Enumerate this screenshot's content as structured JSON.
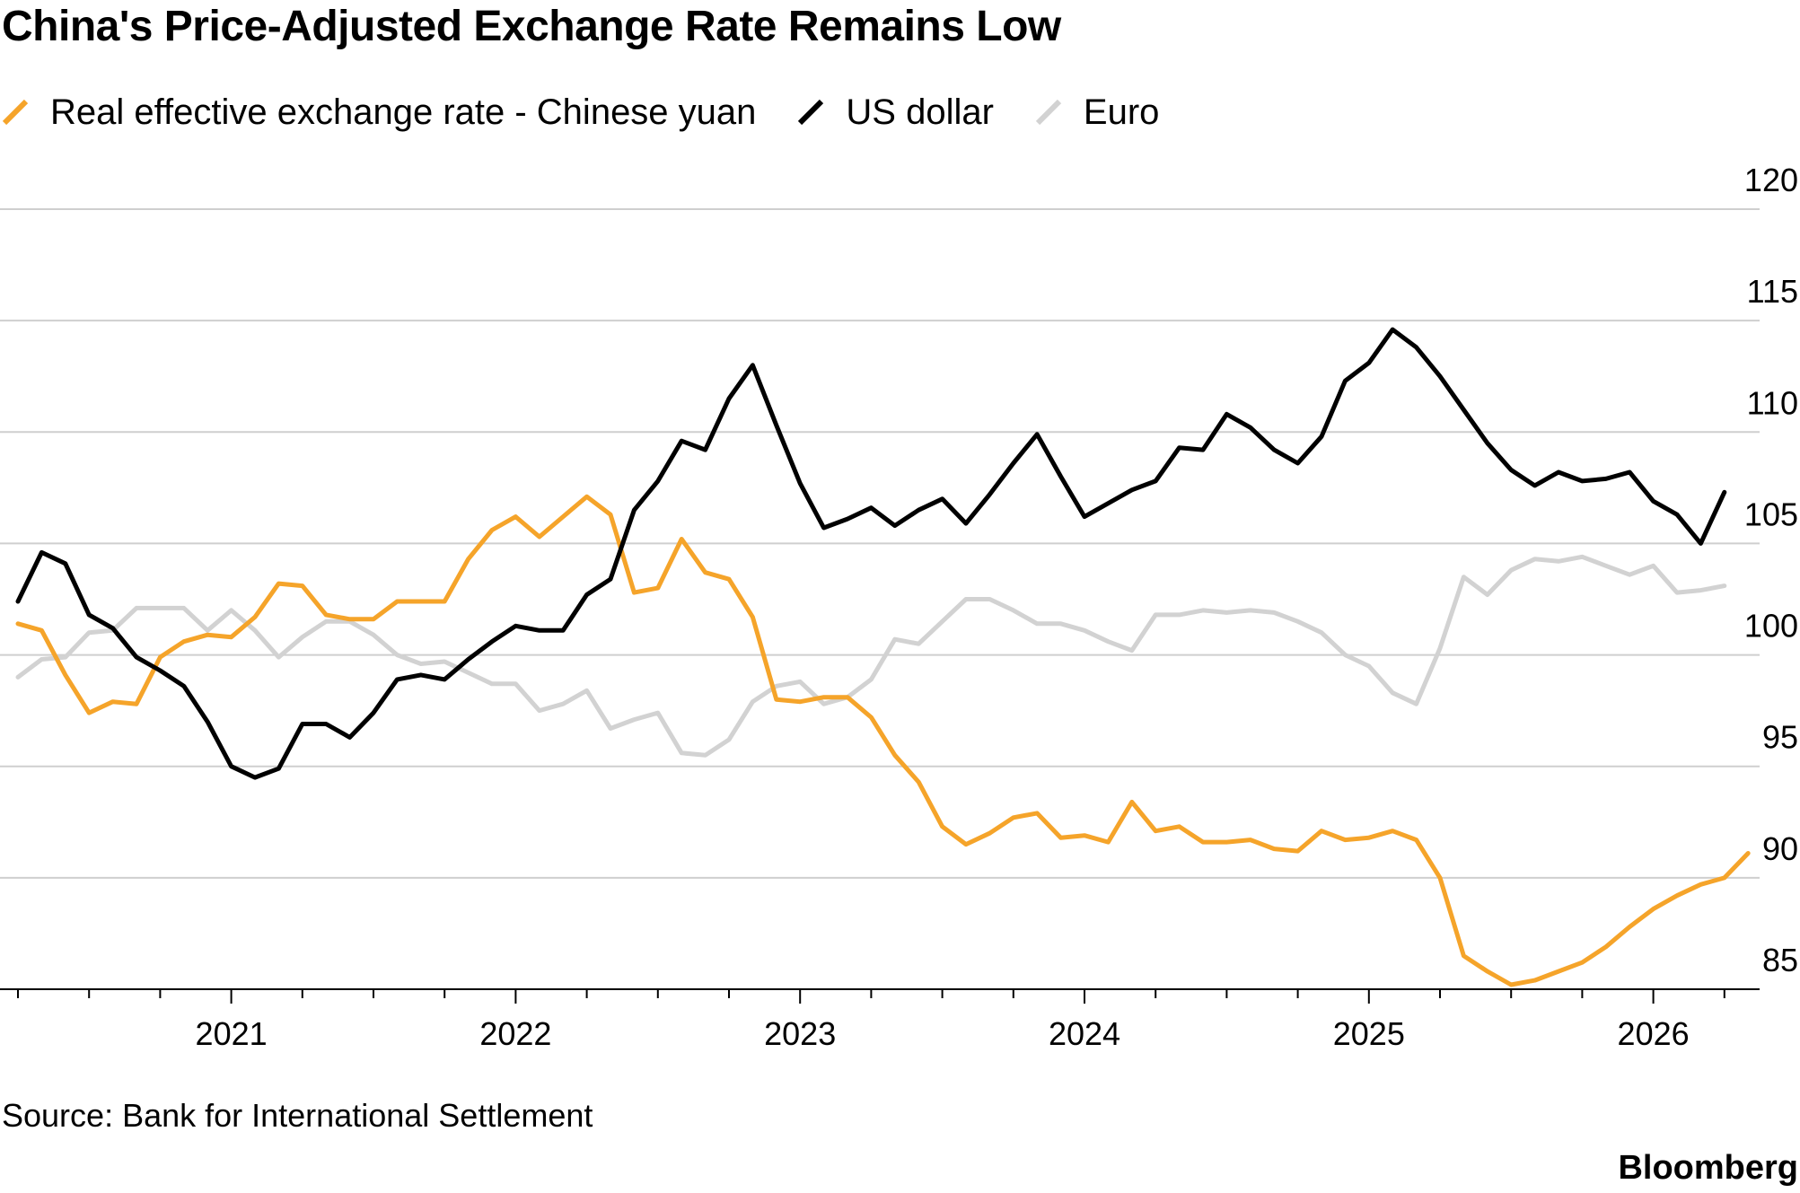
{
  "title": "China's Price-Adjusted Exchange Rate Remains Low",
  "legend": [
    {
      "label": "Real effective exchange rate - Chinese yuan",
      "color": "#f5a42a"
    },
    {
      "label": "US dollar",
      "color": "#000000"
    },
    {
      "label": "Euro",
      "color": "#d2d2d2"
    }
  ],
  "source": "Source: Bank for International Settlement",
  "brand": "Bloomberg",
  "chart_data": {
    "type": "line",
    "x_start": "2020-04",
    "x_unit": "month",
    "xlim": [
      "2020-04",
      "2026-05"
    ],
    "ylim": [
      85,
      120
    ],
    "yticks": [
      85,
      90,
      95,
      100,
      105,
      110,
      115,
      120
    ],
    "ytick_labels": [
      "85",
      "90",
      "95",
      "100",
      "105",
      "110",
      "115",
      "120"
    ],
    "xtick_labels": [
      {
        "year": "2021",
        "month": "2021-01"
      },
      {
        "year": "2022",
        "month": "2022-01"
      },
      {
        "year": "2023",
        "month": "2023-01"
      },
      {
        "year": "2024",
        "month": "2024-01"
      },
      {
        "year": "2025",
        "month": "2025-01"
      },
      {
        "year": "2026",
        "month": "2026-01"
      }
    ],
    "grid": true,
    "y_axis_position": "right",
    "legend_position": "top-left",
    "series": [
      {
        "name": "Real effective exchange rate - Chinese yuan",
        "color": "#f5a42a",
        "values": [
          101.4,
          101.1,
          99.1,
          97.4,
          97.9,
          97.8,
          99.9,
          100.6,
          100.9,
          100.8,
          101.7,
          103.2,
          103.1,
          101.8,
          101.6,
          101.6,
          102.4,
          102.4,
          102.4,
          104.3,
          105.6,
          106.2,
          105.3,
          106.2,
          107.1,
          106.3,
          102.8,
          103.0,
          105.2,
          103.7,
          103.4,
          101.7,
          98.0,
          97.9,
          98.1,
          98.1,
          97.2,
          95.5,
          94.3,
          92.3,
          91.5,
          92.0,
          92.7,
          92.9,
          91.8,
          91.9,
          91.6,
          93.4,
          92.1,
          92.3,
          91.6,
          91.6,
          91.7,
          91.3,
          91.2,
          92.1,
          91.7,
          91.8,
          92.1,
          91.7,
          90.0,
          86.5,
          85.8,
          85.2,
          85.4,
          85.8,
          86.2,
          86.9,
          87.8,
          88.6,
          89.2,
          89.7,
          90.0,
          91.1
        ]
      },
      {
        "name": "US dollar",
        "color": "#000000",
        "values": [
          102.4,
          104.6,
          104.1,
          101.8,
          101.2,
          99.9,
          99.3,
          98.6,
          97.0,
          95.0,
          94.5,
          94.9,
          96.9,
          96.9,
          96.3,
          97.4,
          98.9,
          99.1,
          98.9,
          99.8,
          100.6,
          101.3,
          101.1,
          101.1,
          102.7,
          103.4,
          106.5,
          107.8,
          109.6,
          109.2,
          111.5,
          113.0,
          110.3,
          107.7,
          105.7,
          106.1,
          106.6,
          105.8,
          106.5,
          107.0,
          105.9,
          107.2,
          108.6,
          109.9,
          108.0,
          106.2,
          106.8,
          107.4,
          107.8,
          109.3,
          109.2,
          110.8,
          110.2,
          109.2,
          108.6,
          109.8,
          112.3,
          113.1,
          114.6,
          113.8,
          112.5,
          111.0,
          109.5,
          108.3,
          107.6,
          108.2,
          107.8,
          107.9,
          108.2,
          106.9,
          106.3,
          105.0,
          107.3
        ]
      },
      {
        "name": "Euro",
        "color": "#d2d2d2",
        "values": [
          99.0,
          99.8,
          99.9,
          101.0,
          101.1,
          102.1,
          102.1,
          102.1,
          101.1,
          102.0,
          101.1,
          99.9,
          100.8,
          101.5,
          101.5,
          100.9,
          100.0,
          99.6,
          99.7,
          99.2,
          98.7,
          98.7,
          97.5,
          97.8,
          98.4,
          96.7,
          97.1,
          97.4,
          95.6,
          95.5,
          96.2,
          97.9,
          98.6,
          98.8,
          97.8,
          98.1,
          98.9,
          100.7,
          100.5,
          101.5,
          102.5,
          102.5,
          102.0,
          101.4,
          101.4,
          101.1,
          100.6,
          100.2,
          101.8,
          101.8,
          102.0,
          101.9,
          102.0,
          101.9,
          101.5,
          101.0,
          100.0,
          99.5,
          98.3,
          97.8,
          100.3,
          103.5,
          102.7,
          103.8,
          104.3,
          104.2,
          104.4,
          104.0,
          103.6,
          104.0,
          102.8,
          102.9,
          103.1
        ]
      }
    ]
  }
}
